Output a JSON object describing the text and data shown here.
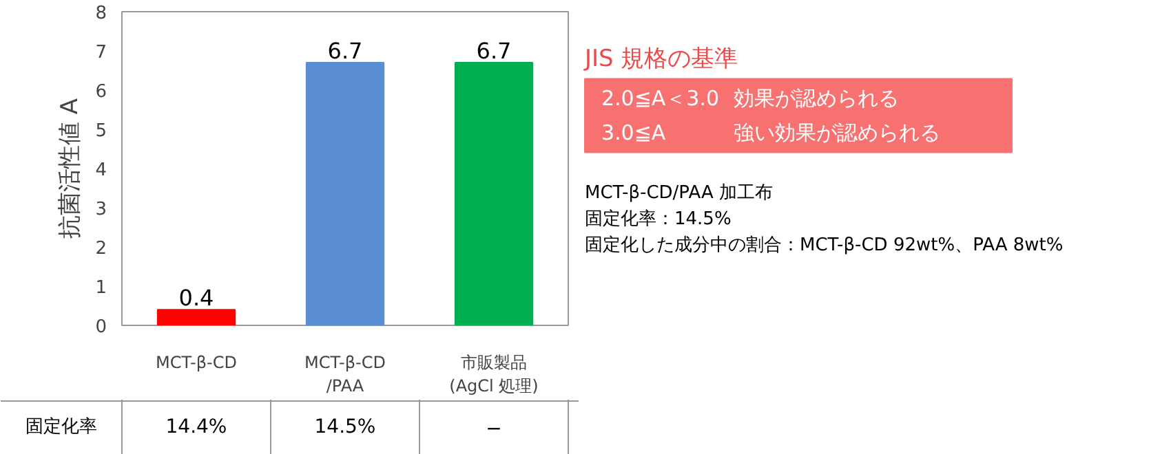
{
  "chart_data": {
    "type": "bar",
    "ylabel": "抗菌活性値 A",
    "categories": [
      "MCT-β-CD",
      "MCT-β-CD\n/PAA",
      "市販製品\n(AgCl 処理)"
    ],
    "values": [
      0.4,
      6.7,
      6.7
    ],
    "colors": [
      "#ff0000",
      "#5b8fd4",
      "#00b050"
    ],
    "ylim": [
      0,
      8
    ],
    "yticks": [
      0,
      1,
      2,
      3,
      4,
      5,
      6,
      7,
      8
    ],
    "grid": false,
    "data_labels": true,
    "annotations": [
      "固定化率",
      "14.4%",
      "14.5%",
      "−",
      "JIS 規格の基準",
      "2.0≦A＜3.0",
      "効果が認められる",
      "3.0≦A",
      "強い効果が認められる",
      "MCT-β-CD/PAA 加工布",
      "固定化率：14.5%",
      "固定化した成分中の割合：MCT-β-CD 92wt%、PAA 8wt%"
    ]
  }
}
